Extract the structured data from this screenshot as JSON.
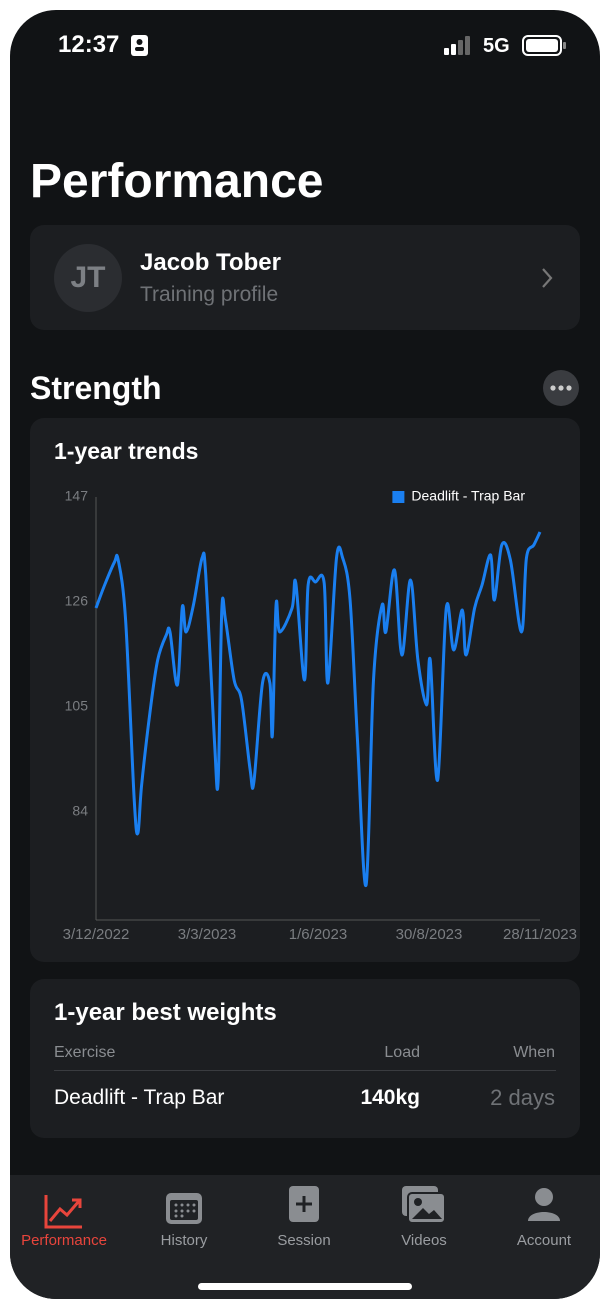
{
  "status_bar": {
    "time": "12:37",
    "network": "5G"
  },
  "header": {
    "title": "Performance"
  },
  "profile": {
    "initials": "JT",
    "name": "Jacob Tober",
    "subtitle": "Training profile"
  },
  "section": {
    "title": "Strength"
  },
  "chart_data": {
    "type": "line",
    "title": "1-year trends",
    "x": [
      0,
      7,
      15,
      18,
      24,
      31,
      34,
      37,
      44,
      50,
      57,
      60,
      66,
      70,
      73,
      79,
      86,
      89,
      96,
      99,
      102,
      105,
      112,
      118,
      125,
      128,
      135,
      141,
      143,
      146,
      149,
      159,
      162,
      169,
      172,
      178,
      185,
      188,
      195,
      200,
      206,
      212,
      219,
      225,
      232,
      235,
      242,
      248,
      255,
      261,
      268,
      271,
      277,
      284,
      290,
      297,
      300,
      307,
      313,
      320,
      323,
      329,
      336,
      345,
      349,
      355,
      360
    ],
    "xlim": [
      0,
      360
    ],
    "xticks": [
      {
        "value": 0,
        "label": "3/12/2022"
      },
      {
        "value": 90,
        "label": "3/3/2023"
      },
      {
        "value": 180,
        "label": "1/6/2023"
      },
      {
        "value": 270,
        "label": "30/8/2023"
      },
      {
        "value": 360,
        "label": "28/11/2023"
      }
    ],
    "ylim": [
      62.4,
      147
    ],
    "yticks": [
      84,
      105,
      126,
      147
    ],
    "grid": false,
    "legend": "top-right",
    "series": [
      {
        "name": "Deadlift - Trap Bar",
        "color": "#1a7ff0",
        "values": [
          124.8,
          129.4,
          134.0,
          134.4,
          122.4,
          86.4,
          79.8,
          89.4,
          104.4,
          114.4,
          119.4,
          120.0,
          109.4,
          125.0,
          120.0,
          125.4,
          134.8,
          131.4,
          98.4,
          90.0,
          124.4,
          122.4,
          110.4,
          106.4,
          92.4,
          90.0,
          109.8,
          109.8,
          99.4,
          125.4,
          120.0,
          124.8,
          129.8,
          110.4,
          129.4,
          130.0,
          129.8,
          109.8,
          134.8,
          134.8,
          126.4,
          98.4,
          69.4,
          110.4,
          125.4,
          120.0,
          132.4,
          115.4,
          130.4,
          114.4,
          105.4,
          114.4,
          90.4,
          124.8,
          116.4,
          124.4,
          115.4,
          124.8,
          129.4,
          135.4,
          126.4,
          137.4,
          134.4,
          120.0,
          134.8,
          137.4,
          140.0
        ]
      }
    ]
  },
  "best_weights": {
    "title": "1-year best weights",
    "columns": [
      "Exercise",
      "Load",
      "When"
    ],
    "rows": [
      [
        "Deadlift - Trap Bar",
        "140kg",
        "2 days"
      ]
    ]
  },
  "tab_bar": {
    "items": [
      "Performance",
      "History",
      "Session",
      "Videos",
      "Account"
    ],
    "active": 0
  }
}
